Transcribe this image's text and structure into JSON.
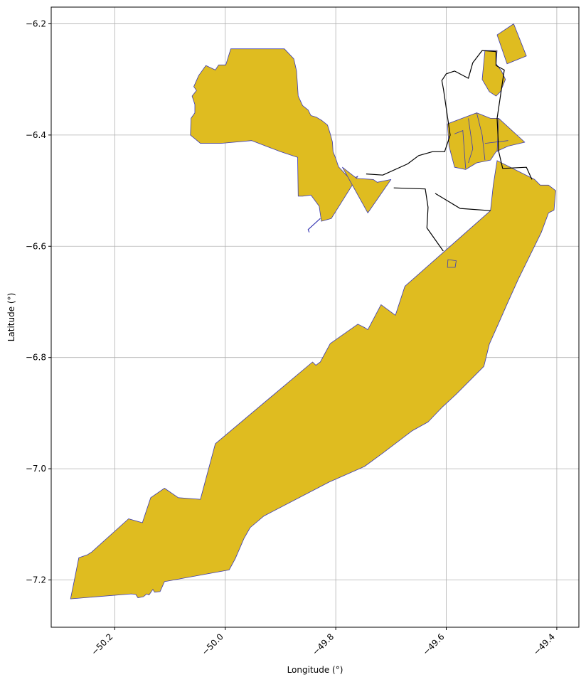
{
  "chart_data": {
    "type": "map",
    "xlabel": "Longitude (°)",
    "ylabel": "Latitude (°)",
    "xlim": [
      -50.315,
      -49.36
    ],
    "ylim": [
      -7.285,
      -6.17
    ],
    "xticks": [
      -50.2,
      -50.0,
      -49.8,
      -49.6,
      -49.4
    ],
    "yticks": [
      -6.2,
      -6.4,
      -6.6,
      -6.8,
      -7.0,
      -7.2
    ],
    "xtick_labels": [
      "−50.2",
      "−50.0",
      "−49.8",
      "−49.6",
      "−49.4"
    ],
    "ytick_labels": [
      "−6.2",
      "−6.4",
      "−6.6",
      "−6.8",
      "−7.0",
      "−7.2"
    ],
    "grid": true,
    "fill_color": "#dfbc20",
    "edge_color": "#3b3bb5",
    "outline_color": "#000000",
    "polygons": [
      {
        "name": "southern-strip",
        "coords": [
          [
            -50.28,
            -7.234
          ],
          [
            -50.273,
            -7.2
          ],
          [
            -50.265,
            -7.16
          ],
          [
            -50.25,
            -7.155
          ],
          [
            -50.242,
            -7.15
          ],
          [
            -50.175,
            -7.09
          ],
          [
            -50.15,
            -7.097
          ],
          [
            -50.135,
            -7.052
          ],
          [
            -50.11,
            -7.035
          ],
          [
            -50.085,
            -7.052
          ],
          [
            -50.045,
            -7.055
          ],
          [
            -50.018,
            -6.955
          ],
          [
            -49.842,
            -6.808
          ],
          [
            -49.836,
            -6.814
          ],
          [
            -49.828,
            -6.808
          ],
          [
            -49.81,
            -6.775
          ],
          [
            -49.76,
            -6.74
          ],
          [
            -49.748,
            -6.746
          ],
          [
            -49.742,
            -6.75
          ],
          [
            -49.718,
            -6.705
          ],
          [
            -49.692,
            -6.724
          ],
          [
            -49.675,
            -6.672
          ],
          [
            -49.52,
            -6.536
          ],
          [
            -49.515,
            -6.49
          ],
          [
            -49.508,
            -6.446
          ],
          [
            -49.44,
            -6.48
          ],
          [
            -49.43,
            -6.49
          ],
          [
            -49.415,
            -6.49
          ],
          [
            -49.402,
            -6.5
          ],
          [
            -49.405,
            -6.535
          ],
          [
            -49.415,
            -6.54
          ],
          [
            -49.428,
            -6.575
          ],
          [
            -49.47,
            -6.66
          ],
          [
            -49.49,
            -6.704
          ],
          [
            -49.506,
            -6.74
          ],
          [
            -49.515,
            -6.76
          ],
          [
            -49.522,
            -6.776
          ],
          [
            -49.532,
            -6.816
          ],
          [
            -49.582,
            -6.866
          ],
          [
            -49.608,
            -6.89
          ],
          [
            -49.633,
            -6.916
          ],
          [
            -49.662,
            -6.932
          ],
          [
            -49.715,
            -6.972
          ],
          [
            -49.748,
            -6.996
          ],
          [
            -49.812,
            -7.024
          ],
          [
            -49.93,
            -7.085
          ],
          [
            -49.955,
            -7.106
          ],
          [
            -49.966,
            -7.125
          ],
          [
            -49.982,
            -7.162
          ],
          [
            -49.993,
            -7.182
          ],
          [
            -50.11,
            -7.203
          ],
          [
            -50.118,
            -7.221
          ],
          [
            -50.128,
            -7.222
          ],
          [
            -50.131,
            -7.217
          ],
          [
            -50.138,
            -7.227
          ],
          [
            -50.142,
            -7.225
          ],
          [
            -50.148,
            -7.23
          ],
          [
            -50.158,
            -7.232
          ],
          [
            -50.162,
            -7.226
          ],
          [
            -50.17,
            -7.225
          ],
          [
            -50.28,
            -7.234
          ]
        ]
      },
      {
        "name": "northwest-block",
        "coords": [
          [
            -49.99,
            -6.245
          ],
          [
            -49.893,
            -6.245
          ],
          [
            -49.876,
            -6.263
          ],
          [
            -49.871,
            -6.285
          ],
          [
            -49.868,
            -6.33
          ],
          [
            -49.86,
            -6.347
          ],
          [
            -49.85,
            -6.355
          ],
          [
            -49.845,
            -6.365
          ],
          [
            -49.835,
            -6.368
          ],
          [
            -49.825,
            -6.374
          ],
          [
            -49.815,
            -6.382
          ],
          [
            -49.81,
            -6.398
          ],
          [
            -49.806,
            -6.413
          ],
          [
            -49.805,
            -6.43
          ],
          [
            -49.8,
            -6.442
          ],
          [
            -49.795,
            -6.457
          ],
          [
            -49.78,
            -6.473
          ],
          [
            -49.768,
            -6.478
          ],
          [
            -49.76,
            -6.474
          ],
          [
            -49.808,
            -6.55
          ],
          [
            -49.826,
            -6.555
          ],
          [
            -49.83,
            -6.528
          ],
          [
            -49.845,
            -6.508
          ],
          [
            -49.86,
            -6.51
          ],
          [
            -49.868,
            -6.51
          ],
          [
            -49.869,
            -6.44
          ],
          [
            -49.9,
            -6.43
          ],
          [
            -49.952,
            -6.41
          ],
          [
            -50.008,
            -6.415
          ],
          [
            -50.045,
            -6.415
          ],
          [
            -50.063,
            -6.4
          ],
          [
            -50.062,
            -6.37
          ],
          [
            -50.055,
            -6.36
          ],
          [
            -50.055,
            -6.345
          ],
          [
            -50.06,
            -6.33
          ],
          [
            -50.052,
            -6.32
          ],
          [
            -50.057,
            -6.313
          ],
          [
            -50.048,
            -6.293
          ],
          [
            -50.035,
            -6.275
          ],
          [
            -50.018,
            -6.283
          ],
          [
            -50.012,
            -6.274
          ],
          [
            -49.999,
            -6.274
          ],
          [
            -49.99,
            -6.245
          ]
        ]
      },
      {
        "name": "river-tongue",
        "coords": [
          [
            -49.788,
            -6.458
          ],
          [
            -49.762,
            -6.478
          ],
          [
            -49.732,
            -6.48
          ],
          [
            -49.725,
            -6.485
          ],
          [
            -49.7,
            -6.48
          ],
          [
            -49.742,
            -6.54
          ],
          [
            -49.788,
            -6.458
          ]
        ]
      },
      {
        "name": "small-island",
        "coords": [
          [
            -49.597,
            -6.624
          ],
          [
            -49.582,
            -6.626
          ],
          [
            -49.584,
            -6.638
          ],
          [
            -49.598,
            -6.638
          ],
          [
            -49.597,
            -6.624
          ]
        ]
      },
      {
        "name": "northeast-cap",
        "coords": [
          [
            -49.508,
            -6.22
          ],
          [
            -49.478,
            -6.2
          ],
          [
            -49.455,
            -6.258
          ],
          [
            -49.49,
            -6.272
          ],
          [
            -49.508,
            -6.22
          ]
        ]
      },
      {
        "name": "northeast-upper",
        "coords": [
          [
            -49.53,
            -6.248
          ],
          [
            -49.508,
            -6.248
          ],
          [
            -49.51,
            -6.272
          ],
          [
            -49.5,
            -6.285
          ],
          [
            -49.493,
            -6.3
          ],
          [
            -49.502,
            -6.322
          ],
          [
            -49.51,
            -6.33
          ],
          [
            -49.522,
            -6.322
          ],
          [
            -49.535,
            -6.3
          ],
          [
            -49.53,
            -6.248
          ]
        ]
      },
      {
        "name": "northeast-cluster",
        "coords": [
          [
            -49.598,
            -6.38
          ],
          [
            -49.545,
            -6.36
          ],
          [
            -49.52,
            -6.37
          ],
          [
            -49.505,
            -6.37
          ],
          [
            -49.458,
            -6.413
          ],
          [
            -49.488,
            -6.42
          ],
          [
            -49.51,
            -6.43
          ],
          [
            -49.52,
            -6.445
          ],
          [
            -49.545,
            -6.45
          ],
          [
            -49.565,
            -6.462
          ],
          [
            -49.585,
            -6.458
          ],
          [
            -49.595,
            -6.42
          ],
          [
            -49.598,
            -6.38
          ]
        ]
      }
    ],
    "lines": [
      {
        "name": "boundary-line-1",
        "coords": [
          [
            -49.695,
            -6.495
          ],
          [
            -49.638,
            -6.497
          ],
          [
            -49.633,
            -6.53
          ],
          [
            -49.635,
            -6.567
          ],
          [
            -49.606,
            -6.608
          ],
          [
            -49.605,
            -6.608
          ]
        ]
      },
      {
        "name": "boundary-line-2",
        "coords": [
          [
            -49.745,
            -6.47
          ],
          [
            -49.715,
            -6.472
          ],
          [
            -49.67,
            -6.452
          ],
          [
            -49.65,
            -6.437
          ],
          [
            -49.625,
            -6.43
          ],
          [
            -49.603,
            -6.43
          ],
          [
            -49.593,
            -6.4
          ],
          [
            -49.605,
            -6.318
          ],
          [
            -49.608,
            -6.302
          ],
          [
            -49.6,
            -6.29
          ],
          [
            -49.585,
            -6.285
          ],
          [
            -49.56,
            -6.298
          ],
          [
            -49.552,
            -6.27
          ],
          [
            -49.535,
            -6.248
          ],
          [
            -49.51,
            -6.25
          ],
          [
            -49.51,
            -6.275
          ]
        ]
      },
      {
        "name": "boundary-line-3",
        "coords": [
          [
            -49.51,
            -6.275
          ],
          [
            -49.495,
            -6.283
          ],
          [
            -49.508,
            -6.37
          ],
          [
            -49.505,
            -6.43
          ],
          [
            -49.498,
            -6.46
          ],
          [
            -49.455,
            -6.458
          ],
          [
            -49.445,
            -6.48
          ]
        ]
      },
      {
        "name": "boundary-line-4",
        "coords": [
          [
            -49.62,
            -6.505
          ],
          [
            -49.575,
            -6.532
          ],
          [
            -49.52,
            -6.536
          ]
        ]
      },
      {
        "name": "water-line",
        "coords": [
          [
            -49.828,
            -6.55
          ],
          [
            -49.85,
            -6.57
          ],
          [
            -49.848,
            -6.575
          ]
        ]
      }
    ]
  }
}
